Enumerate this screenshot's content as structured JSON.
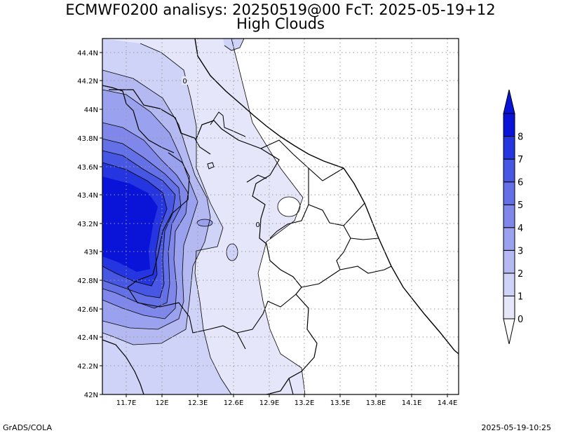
{
  "title_line1": "ECMWF0200 analisys: 20250519@00 FcT: 2025-05-19+12",
  "title_line2": "High Clouds",
  "footer_left": "GrADS/COLA",
  "footer_right": "2025-05-19-10:25",
  "map": {
    "lon_labels": [
      "11.7E",
      "12E",
      "12.3E",
      "12.6E",
      "12.9E",
      "13.2E",
      "13.5E",
      "13.8E",
      "14.1E",
      "14.4E"
    ],
    "lat_labels": [
      "44.4N",
      "44.2N",
      "44N",
      "43.8N",
      "43.6N",
      "43.4N",
      "43.2N",
      "43N",
      "42.8N",
      "42.6N",
      "42.4N",
      "42.2N",
      "42N"
    ],
    "contour_labels": [
      "0",
      "0"
    ]
  },
  "colorbar": {
    "labels": [
      "0",
      "1",
      "2",
      "3",
      "4",
      "5",
      "6",
      "7",
      "8"
    ],
    "colors": [
      "#e6e6fa",
      "#cfd3f7",
      "#b4b9f2",
      "#9aa1ee",
      "#7f88ea",
      "#6370e6",
      "#4856e4",
      "#2535df",
      "#0a14d8"
    ]
  }
}
